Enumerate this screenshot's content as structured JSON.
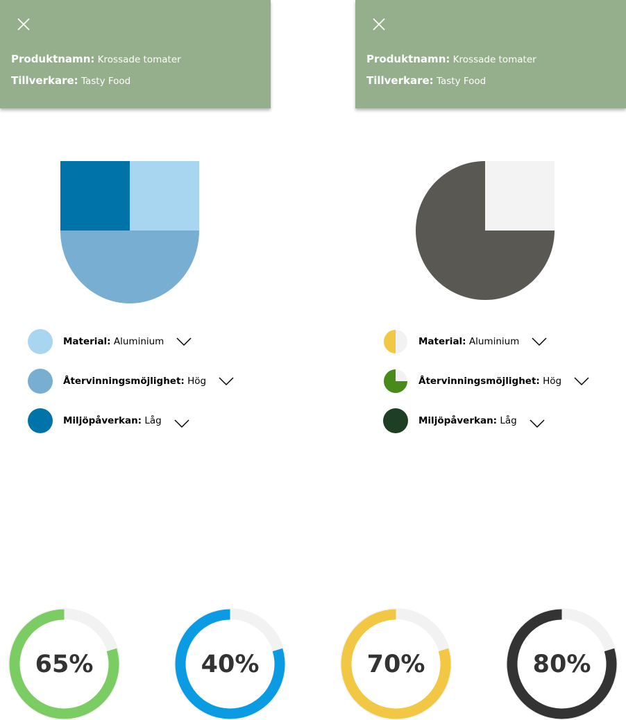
{
  "panels": [
    {
      "product_label": "Produktnamn:",
      "product_value": "Krossade tomater",
      "maker_label": "Tillverkare:",
      "maker_value": "Tasty Food"
    },
    {
      "product_label": "Produktnamn:",
      "product_value": "Krossade tomater",
      "maker_label": "Tillverkare:",
      "maker_value": "Tasty Food"
    }
  ],
  "legends": [
    {
      "items": [
        {
          "label": "Material:",
          "value": "Aluminium",
          "color": "#a8d5f0"
        },
        {
          "label": "Återvinningsmöjlighet:",
          "value": "Hög",
          "color": "#78aed2"
        },
        {
          "label": "Miljöpåverkan:",
          "value": "Låg",
          "color": "#0074a8"
        }
      ]
    },
    {
      "items": [
        {
          "label": "Material:",
          "value": "Aluminium",
          "color": "#f0c843"
        },
        {
          "label": "Återvinningsmöjlighet:",
          "value": "Hög",
          "color": "#4a8a1a"
        },
        {
          "label": "Miljöpåverkan:",
          "value": "Låg",
          "color": "#1e3f24"
        }
      ]
    }
  ],
  "donuts": [
    {
      "percent_label": "65%",
      "color": "#7acc63"
    },
    {
      "percent_label": "40%",
      "color": "#0a9be2"
    },
    {
      "percent_label": "70%",
      "color": "#f2c744"
    },
    {
      "percent_label": "80%",
      "color": "#333333"
    }
  ],
  "colors": {
    "panel_bg": "#95ae8c",
    "track": "#f2f2f2",
    "pie_dark": "#595853",
    "pie_light": "#f3f3f3"
  }
}
